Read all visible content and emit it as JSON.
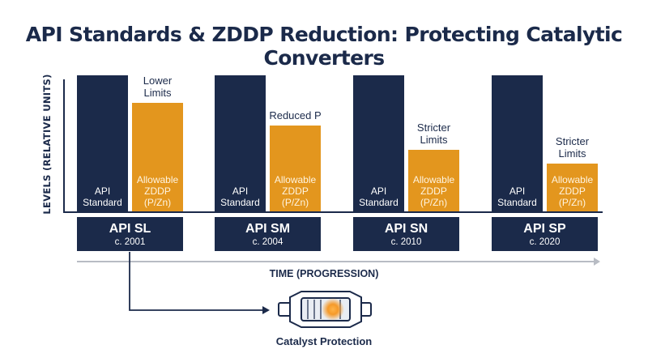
{
  "title": "API Standards & ZDDP Reduction: Protecting Catalytic Converters",
  "y_axis_label": "LEVELS (RELATIVE UNITS)",
  "x_axis_label": "TIME (PROGRESSION)",
  "colors": {
    "navy": "#1b2a4a",
    "orange": "#e3961e",
    "axis_gray": "#b8bcc4"
  },
  "groups": [
    {
      "standard": "API SL",
      "year": "c. 2001",
      "std_label": "API\nStandard",
      "zddp_label": "Allowable\nZDDP\n(P/Zn)",
      "note": "Lower\nLimits"
    },
    {
      "standard": "API SM",
      "year": "c. 2004",
      "std_label": "API\nStandard",
      "zddp_label": "Allowable\nZDDP\n(P/Zn)",
      "note": "Reduced P"
    },
    {
      "standard": "API SN",
      "year": "c. 2010",
      "std_label": "API\nStandard",
      "zddp_label": "Allowable\nZDDP\n(P/Zn)",
      "note": "Stricter\nLimits"
    },
    {
      "standard": "API SP",
      "year": "c. 2020",
      "std_label": "API\nStandard",
      "zddp_label": "Allowable\nZDDP\n(P/Zn)",
      "note": "Stricter\nLimits"
    }
  ],
  "chart_data": {
    "type": "bar",
    "categories": [
      "API SL",
      "API SM",
      "API SN",
      "API SP"
    ],
    "series": [
      {
        "name": "API Standard",
        "values": [
          100,
          100,
          100,
          100
        ]
      },
      {
        "name": "Allowable ZDDP (P/Zn)",
        "values": [
          80,
          63,
          45,
          35
        ]
      }
    ],
    "xlabel": "TIME (PROGRESSION)",
    "ylabel": "LEVELS (RELATIVE UNITS)",
    "ylim": [
      0,
      100
    ]
  },
  "catalyst": {
    "label": "Catalyst Protection",
    "icon": "catalytic-converter-icon"
  }
}
